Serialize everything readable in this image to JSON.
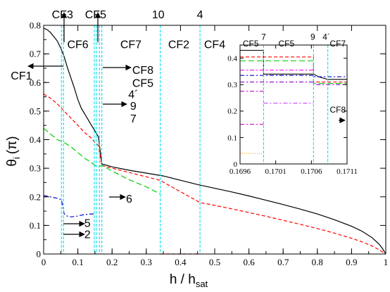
{
  "chart_data": [
    {
      "type": "line",
      "xlabel": "h / h",
      "xlabel_sub": "sat",
      "ylabel": "θ",
      "ylabel_sub": "i",
      "ylabel_unit": "(π)",
      "xlim": [
        0,
        1
      ],
      "ylim": [
        0,
        0.8
      ],
      "xticks": [
        0,
        0.1,
        0.2,
        0.3,
        0.4,
        0.5,
        0.6,
        0.7,
        0.8,
        0.9,
        1
      ],
      "xtick_labels": [
        "0",
        "0.1",
        "0.2",
        "0.3",
        "0.4",
        "0.5",
        "0.6",
        "0.7",
        "0.8",
        "0.9",
        "1"
      ],
      "yticks": [
        0,
        0.1,
        0.2,
        0.3,
        0.4,
        0.5,
        0.6,
        0.7,
        0.8
      ],
      "ytick_labels": [
        "0",
        "0.1",
        "0.2",
        "0.3",
        "0.4",
        "0.5",
        "0.6",
        "0.7",
        "0.8"
      ],
      "grid": false,
      "vlines": [
        0.052,
        0.058,
        0.148,
        0.154,
        0.163,
        0.17,
        0.341,
        0.457
      ],
      "series": [
        {
          "color": "#000000",
          "dash": "",
          "x": [
            0,
            0.01,
            0.02,
            0.03,
            0.04,
            0.05,
            0.06,
            0.07,
            0.08,
            0.09,
            0.1,
            0.11,
            0.12,
            0.13,
            0.14,
            0.15,
            0.16,
            0.17,
            0.2,
            0.25,
            0.3,
            0.35,
            0.4,
            0.45,
            0.5,
            0.55,
            0.6,
            0.65,
            0.7,
            0.75,
            0.8,
            0.85,
            0.9,
            0.93,
            0.96,
            0.98,
            0.99,
            1
          ],
          "y": [
            0.79,
            0.785,
            0.775,
            0.76,
            0.745,
            0.72,
            0.69,
            0.65,
            0.615,
            0.58,
            0.54,
            0.51,
            0.49,
            0.47,
            0.45,
            0.43,
            0.41,
            0.315,
            0.305,
            0.293,
            0.283,
            0.273,
            0.258,
            0.243,
            0.23,
            0.217,
            0.203,
            0.188,
            0.173,
            0.157,
            0.14,
            0.12,
            0.097,
            0.08,
            0.057,
            0.035,
            0.02,
            0
          ]
        },
        {
          "color": "#ff0000",
          "dash": "5,3",
          "x": [
            0,
            0.02,
            0.04,
            0.06,
            0.08,
            0.1,
            0.12,
            0.14,
            0.15,
            0.16,
            0.17,
            0.2,
            0.25,
            0.3,
            0.34,
            0.457,
            0.5,
            0.55,
            0.6,
            0.65,
            0.7,
            0.75,
            0.8,
            0.85,
            0.9,
            0.93,
            0.96,
            0.98,
            1
          ],
          "y": [
            0.56,
            0.545,
            0.525,
            0.5,
            0.475,
            0.45,
            0.425,
            0.405,
            0.39,
            0.38,
            0.31,
            0.3,
            0.285,
            0.27,
            0.258,
            0.18,
            0.17,
            0.158,
            0.145,
            0.132,
            0.118,
            0.104,
            0.089,
            0.073,
            0.055,
            0.043,
            0.028,
            0.015,
            0
          ]
        },
        {
          "color": "#ff0000",
          "dash": "5,3",
          "x": [
            0.341,
            0.457
          ],
          "y": [
            0,
            0
          ]
        },
        {
          "color": "#00cc00",
          "dash": "8,4",
          "x": [
            0,
            0.02,
            0.04,
            0.06,
            0.08,
            0.1,
            0.12,
            0.14,
            0.15,
            0.16,
            0.17,
            0.2,
            0.25,
            0.3,
            0.341
          ],
          "y": [
            0.44,
            0.42,
            0.4,
            0.39,
            0.375,
            0.355,
            0.335,
            0.32,
            0.31,
            0.305,
            0.31,
            0.29,
            0.26,
            0.235,
            0.21
          ]
        },
        {
          "color": "#0000cc",
          "dash": "6,3,2,3",
          "x": [
            0,
            0.02,
            0.04,
            0.052,
            0.06,
            0.07,
            0.08,
            0.09,
            0.1,
            0.11,
            0.12,
            0.13,
            0.14,
            0.148
          ],
          "y": [
            0.205,
            0.2,
            0.195,
            0.19,
            0.14,
            0.132,
            0.13,
            0.131,
            0.133,
            0.136,
            0.138,
            0.139,
            0.14,
            0.14
          ]
        }
      ],
      "text_labels": [
        {
          "text": "CF3",
          "x": 0.055,
          "y": 0.825
        },
        {
          "text": "CF5",
          "x": 0.152,
          "y": 0.825
        },
        {
          "text": "10",
          "x": 0.335,
          "y": 0.825
        },
        {
          "text": "4",
          "x": 0.457,
          "y": 0.825
        },
        {
          "text": "CF6",
          "x": 0.1,
          "y": 0.72
        },
        {
          "text": "CF7",
          "x": 0.255,
          "y": 0.72
        },
        {
          "text": "CF2",
          "x": 0.395,
          "y": 0.72
        },
        {
          "text": "CF4",
          "x": 0.5,
          "y": 0.72
        },
        {
          "text": "CF1",
          "x": -0.065,
          "y": 0.61
        },
        {
          "text": "CF8",
          "x": 0.29,
          "y": 0.63
        },
        {
          "text": "CF5",
          "x": 0.29,
          "y": 0.585
        },
        {
          "text": "4´",
          "x": 0.262,
          "y": 0.545
        },
        {
          "text": "9",
          "x": 0.262,
          "y": 0.505
        },
        {
          "text": "7",
          "x": 0.262,
          "y": 0.46
        },
        {
          "text": "6",
          "x": 0.25,
          "y": 0.18
        },
        {
          "text": "5",
          "x": 0.128,
          "y": 0.095
        },
        {
          "text": "2",
          "x": 0.128,
          "y": 0.055
        }
      ]
    },
    {
      "type": "line",
      "xlim": [
        0.1696,
        0.1711
      ],
      "ylim": [
        0,
        0.45
      ],
      "xticks": [
        0.1696,
        0.1701,
        0.1706,
        0.1711
      ],
      "xtick_labels": [
        "0.1696",
        "0.1701",
        "0.1706",
        "0.1711"
      ],
      "yticks": [
        0,
        0.1,
        0.2,
        0.3,
        0.4
      ],
      "ytick_labels": [
        "0",
        "0.1",
        "0.2",
        "0.3",
        "0.4"
      ],
      "vlines": [
        0.16993,
        0.17063,
        0.17083
      ],
      "series": [
        {
          "color": "#000000",
          "dash": "",
          "x": [
            0.1696,
            0.16993,
            0.16993,
            0.17063,
            0.17063,
            0.1707,
            0.17083,
            0.1711
          ],
          "y": [
            0.43,
            0.43,
            0.34,
            0.34,
            0.34,
            0.33,
            0.32,
            0.32
          ]
        },
        {
          "color": "#ff0000",
          "dash": "5,3",
          "x": [
            0.1696,
            0.17063,
            0.17063,
            0.1711
          ],
          "y": [
            0.405,
            0.405,
            0.31,
            0.31
          ]
        },
        {
          "color": "#00cc00",
          "dash": "8,4",
          "x": [
            0.1696,
            0.17063,
            0.17063,
            0.1711
          ],
          "y": [
            0.39,
            0.39,
            0.305,
            0.305
          ]
        },
        {
          "color": "#ff00ff",
          "dash": "6,3,2,3",
          "x": [
            0.1696,
            0.17063
          ],
          "y": [
            0.355,
            0.355
          ]
        },
        {
          "color": "#0000cc",
          "dash": "6,3,2,3",
          "x": [
            0.1696,
            0.17063,
            0.17063,
            0.1711
          ],
          "y": [
            0.335,
            0.335,
            0.33,
            0.33
          ]
        },
        {
          "color": "#8800cc",
          "dash": "6,3,2,3",
          "x": [
            0.1696,
            0.17063,
            0.17063,
            0.1711
          ],
          "y": [
            0.31,
            0.31,
            0.3,
            0.3
          ]
        },
        {
          "color": "#cc00cc",
          "dash": "6,3,2,3",
          "x": [
            0.1696,
            0.16993
          ],
          "y": [
            0.275,
            0.275
          ]
        },
        {
          "color": "#cc44ff",
          "dash": "6,3,2,3",
          "x": [
            0.16993,
            0.17063
          ],
          "y": [
            0.23,
            0.23
          ]
        },
        {
          "color": "#cc00cc",
          "dash": "6,3,2,3",
          "x": [
            0.1696,
            0.16993
          ],
          "y": [
            0.15,
            0.15
          ]
        },
        {
          "color": "#ff8800",
          "dash": "1,2",
          "x": [
            0.1696,
            0.16993
          ],
          "y": [
            0.04,
            0.04
          ]
        }
      ],
      "text_labels": [
        {
          "text": "7",
          "x": 0.16993,
          "y": 0.47
        },
        {
          "text": "9",
          "x": 0.17062,
          "y": 0.47
        },
        {
          "text": "4´",
          "x": 0.17081,
          "y": 0.47
        },
        {
          "text": "CF5",
          "x": 0.16975,
          "y": 0.445
        },
        {
          "text": "CF5",
          "x": 0.17025,
          "y": 0.445
        },
        {
          "text": "CF7",
          "x": 0.17097,
          "y": 0.445
        },
        {
          "text": "CF8",
          "x": 0.17097,
          "y": 0.195
        }
      ]
    }
  ]
}
